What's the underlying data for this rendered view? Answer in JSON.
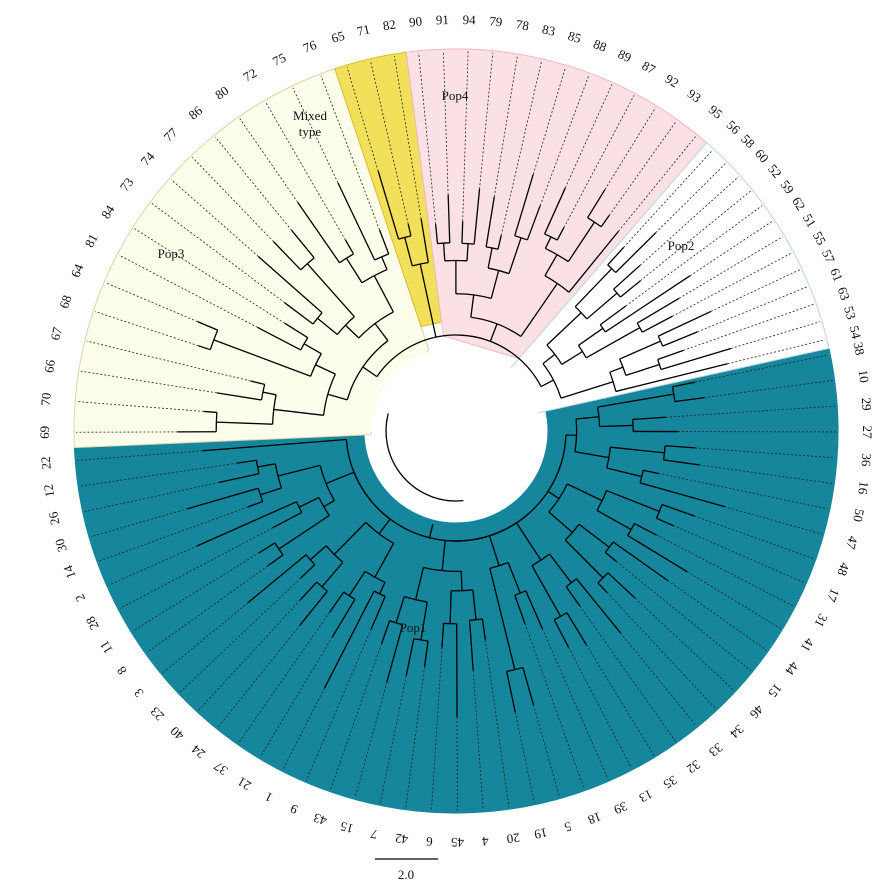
{
  "tree": {
    "scale_bar": {
      "label": "2.0"
    },
    "groups": [
      {
        "name": "Pop1",
        "fill": "#15869b",
        "leaves": [
          "38",
          "10",
          "29",
          "27",
          "36",
          "16",
          "50",
          "47",
          "48",
          "17",
          "31",
          "41",
          "44",
          "15",
          "46",
          "34",
          "33",
          "32",
          "35",
          "13",
          "39",
          "18",
          "5",
          "19",
          "20",
          "4",
          "45",
          "6",
          "42",
          "7",
          "15",
          "43",
          "9",
          "1",
          "21",
          "37",
          "24",
          "40",
          "23",
          "3",
          "8",
          "11",
          "28",
          "2",
          "14",
          "30",
          "26",
          "12",
          "22"
        ]
      },
      {
        "name": "Pop3",
        "fill": "#fdfdec",
        "leaves": [
          "69",
          "70",
          "66",
          "67",
          "68",
          "64",
          "81",
          "84",
          "73",
          "74",
          "77",
          "86",
          "80",
          "72",
          "75",
          "76"
        ]
      },
      {
        "name": "Mixed type",
        "label_lines": [
          "Mixed",
          "type"
        ],
        "fill": "#f3e05a",
        "leaves": [
          "65",
          "71",
          "82"
        ]
      },
      {
        "name": "Pop4",
        "fill": "#fbe0e4",
        "leaves": [
          "90",
          "91",
          "94",
          "79",
          "78",
          "83",
          "85",
          "88",
          "89",
          "87",
          "92",
          "93",
          "95"
        ]
      },
      {
        "name": "Pop2",
        "fill": "#ffffff",
        "leaves": [
          "56",
          "58",
          "60",
          "52",
          "59",
          "62",
          "51",
          "55",
          "57",
          "61",
          "63",
          "53",
          "54"
        ]
      }
    ],
    "colors": {
      "branch": "#000000",
      "pop1": "#15869b",
      "pop2_border": "#bcd7e3",
      "pop3_border": "#d9d6a8",
      "pop4_border": "#f0b8c2",
      "mixed_border": "#d9c02a"
    }
  }
}
